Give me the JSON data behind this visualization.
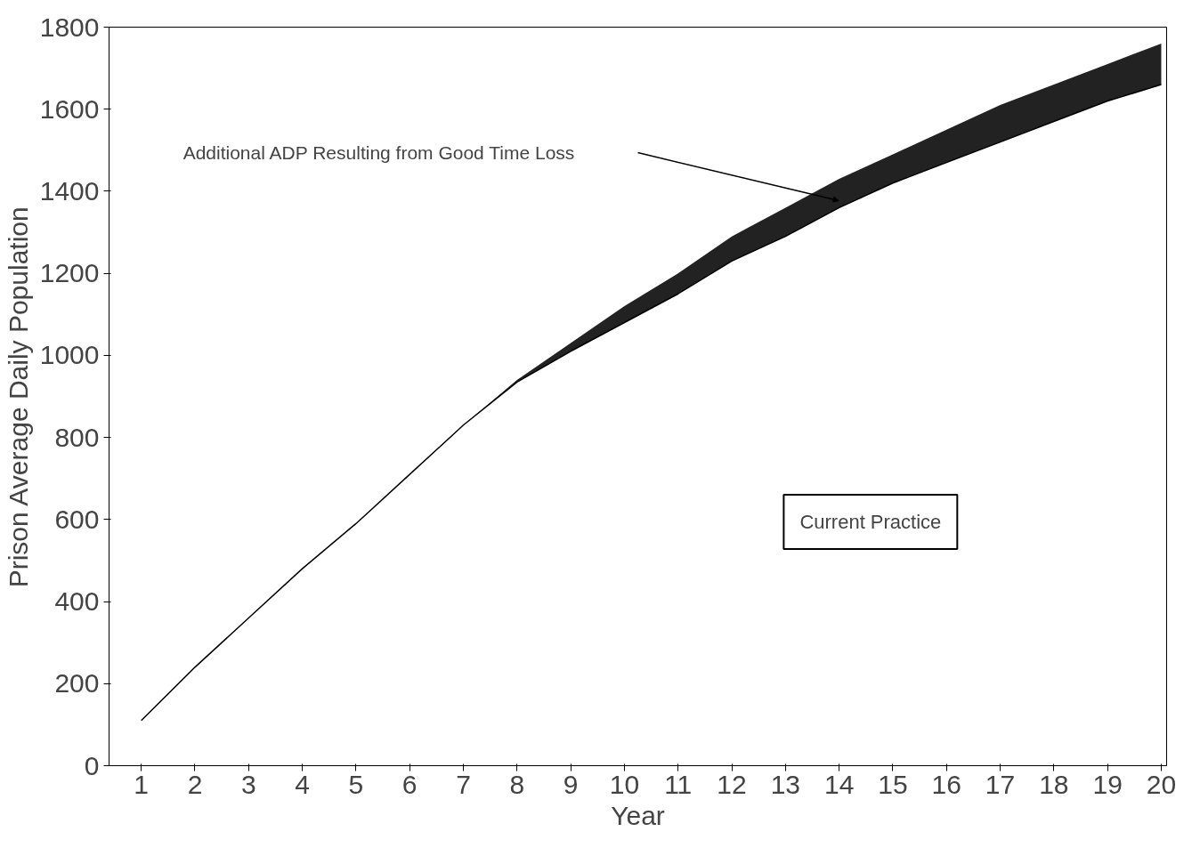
{
  "chart_data": {
    "type": "line",
    "xlabel": "Year",
    "ylabel": "Prison Average Daily Population",
    "x": [
      1,
      2,
      3,
      4,
      5,
      6,
      7,
      8,
      9,
      10,
      11,
      12,
      13,
      14,
      15,
      16,
      17,
      18,
      19,
      20
    ],
    "series": [
      {
        "name": "Current Practice",
        "color": "#000000",
        "values": [
          110,
          240,
          360,
          480,
          590,
          710,
          830,
          935,
          1010,
          1080,
          1150,
          1230,
          1290,
          1360,
          1420,
          1470,
          1520,
          1570,
          1620,
          1660
        ],
        "lower": [
          110,
          240,
          360,
          480,
          590,
          710,
          830,
          935,
          1010,
          1080,
          1150,
          1230,
          1290,
          1360,
          1420,
          1470,
          1520,
          1570,
          1620,
          1660
        ],
        "upper": [
          110,
          240,
          360,
          480,
          590,
          710,
          830,
          940,
          1030,
          1120,
          1200,
          1290,
          1360,
          1430,
          1490,
          1550,
          1610,
          1660,
          1710,
          1760
        ]
      }
    ],
    "xlim": [
      0.4,
      20.1
    ],
    "ylim": [
      0,
      1800
    ],
    "xticks": [
      1,
      2,
      3,
      4,
      5,
      6,
      7,
      8,
      9,
      10,
      11,
      12,
      13,
      14,
      15,
      16,
      17,
      18,
      19,
      20
    ],
    "yticks": [
      0,
      200,
      400,
      600,
      800,
      1000,
      1200,
      1400,
      1600,
      1800
    ],
    "grid": false,
    "legend": "right",
    "marker": "none",
    "line_style": "solid",
    "annotations": [
      "Additional ADP Resulting from Good Time Loss"
    ]
  }
}
